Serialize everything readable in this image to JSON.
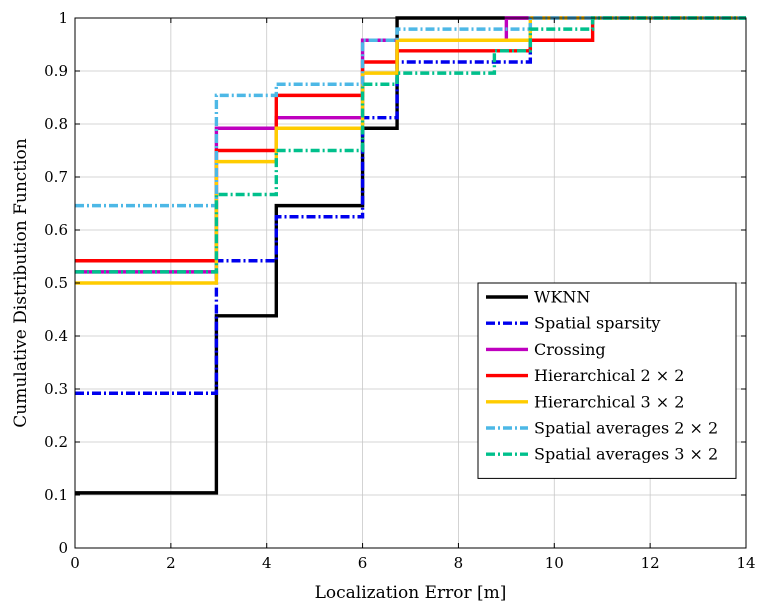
{
  "chart_data": {
    "type": "line",
    "title": "",
    "xlabel": "Localization Error [m]",
    "ylabel": "Cumulative Distribution Function",
    "xlim": [
      0,
      14
    ],
    "ylim": [
      0,
      1
    ],
    "xticks": [
      "0",
      "2",
      "4",
      "6",
      "8",
      "10",
      "12",
      "14"
    ],
    "yticks": [
      "0",
      "0.1",
      "0.2",
      "0.3",
      "0.4",
      "0.5",
      "0.6",
      "0.7",
      "0.8",
      "0.9",
      "1"
    ],
    "grid": true,
    "legend_position": "bottom-right",
    "series": [
      {
        "name": "WKNN",
        "color": "#000000",
        "dash": "solid",
        "x": [
          0,
          2.95,
          2.95,
          4.2,
          4.2,
          6.0,
          6.0,
          6.72,
          6.72,
          14
        ],
        "y": [
          0.104,
          0.104,
          0.438,
          0.438,
          0.646,
          0.646,
          0.792,
          0.792,
          1.0,
          1.0
        ]
      },
      {
        "name": "Spatial sparsity",
        "color": "#0000ee",
        "dash": "dashdot",
        "x": [
          0,
          2.95,
          2.95,
          4.2,
          4.2,
          6.0,
          6.0,
          6.72,
          6.72,
          9.5,
          9.5,
          14
        ],
        "y": [
          0.292,
          0.292,
          0.542,
          0.542,
          0.625,
          0.625,
          0.812,
          0.812,
          0.917,
          0.917,
          1.0,
          1.0
        ]
      },
      {
        "name": "Crossing",
        "color": "#bf00bf",
        "dash": "solid",
        "x": [
          0,
          2.95,
          2.95,
          4.2,
          4.2,
          6.0,
          6.0,
          9.0,
          9.0,
          14
        ],
        "y": [
          0.521,
          0.521,
          0.792,
          0.792,
          0.812,
          0.812,
          0.958,
          0.958,
          1.0,
          1.0
        ]
      },
      {
        "name": "Hierarchical 2 × 2",
        "color": "#ff0000",
        "dash": "solid",
        "x": [
          0,
          2.95,
          2.95,
          4.2,
          4.2,
          6.0,
          6.0,
          6.72,
          6.72,
          9.5,
          9.5,
          10.8,
          10.8,
          14
        ],
        "y": [
          0.542,
          0.542,
          0.75,
          0.75,
          0.854,
          0.854,
          0.917,
          0.917,
          0.938,
          0.938,
          0.958,
          0.958,
          1.0,
          1.0
        ]
      },
      {
        "name": "Hierarchical 3 × 2",
        "color": "#ffcc00",
        "dash": "solid",
        "x": [
          0,
          2.95,
          2.95,
          4.2,
          4.2,
          6.0,
          6.0,
          6.72,
          6.72,
          9.5,
          9.5,
          14
        ],
        "y": [
          0.5,
          0.5,
          0.729,
          0.729,
          0.792,
          0.792,
          0.896,
          0.896,
          0.958,
          0.958,
          1.0,
          1.0
        ]
      },
      {
        "name": "Spatial averages 2 × 2",
        "color": "#4db8e6",
        "dash": "dashdot",
        "x": [
          0,
          2.95,
          2.95,
          4.2,
          4.2,
          6.0,
          6.0,
          6.72,
          6.72,
          9.5,
          9.5,
          14
        ],
        "y": [
          0.646,
          0.646,
          0.854,
          0.854,
          0.875,
          0.875,
          0.958,
          0.958,
          0.979,
          0.979,
          1.0,
          1.0
        ]
      },
      {
        "name": "Spatial averages 3 × 2",
        "color": "#00c08c",
        "dash": "dashdot",
        "x": [
          0,
          2.95,
          2.95,
          4.2,
          4.2,
          6.0,
          6.0,
          6.72,
          6.72,
          8.75,
          8.75,
          9.5,
          9.5,
          10.8,
          10.8,
          14
        ],
        "y": [
          0.521,
          0.521,
          0.667,
          0.667,
          0.75,
          0.75,
          0.875,
          0.875,
          0.896,
          0.896,
          0.938,
          0.938,
          0.979,
          0.979,
          1.0,
          1.0
        ]
      }
    ]
  }
}
